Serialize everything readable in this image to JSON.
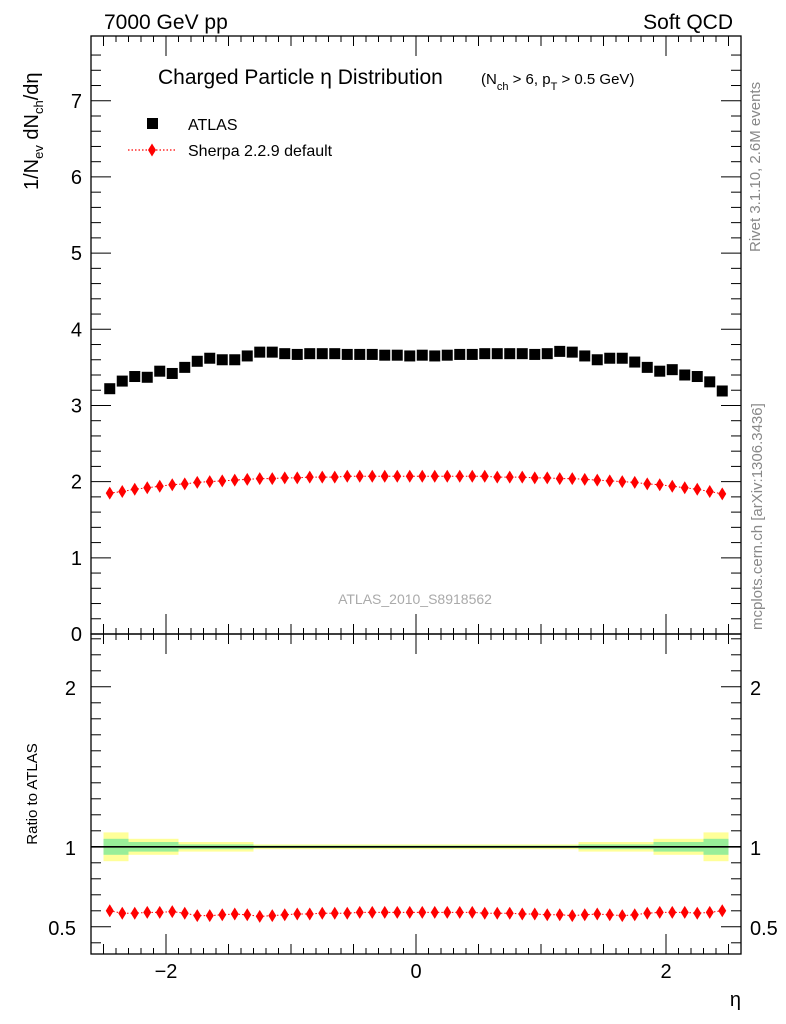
{
  "header": {
    "left": "7000 GeV pp",
    "right": "Soft QCD"
  },
  "side_labels": {
    "rivet": "Rivet 3.1.10,  2.6M events",
    "mcplots": "mcplots.cern.ch [arXiv:1306.3436]"
  },
  "colors": {
    "atlas": "#000000",
    "sherpa": "#ff0000",
    "band_inner": "#99ee99",
    "band_outer": "#ffff99"
  },
  "chart_data": [
    {
      "type": "scatter",
      "title_main": "Charged Particle η Distribution",
      "title_sub_parts": [
        "(N",
        "ch",
        " > 6, p",
        "T",
        " > 0.5 GeV)"
      ],
      "ylabel_parts": [
        "1/N",
        "ev",
        " dN",
        "ch",
        "/dη"
      ],
      "watermark": "ATLAS_2010_S8918562",
      "xlim": [
        -2.6,
        2.6
      ],
      "ylim": [
        0,
        7.85
      ],
      "yticks": [
        0,
        1,
        2,
        3,
        4,
        5,
        6,
        7
      ],
      "legend_position": "top-left",
      "legend": [
        {
          "label": "ATLAS",
          "marker": "square"
        },
        {
          "label": "Sherpa 2.2.9 default",
          "marker": "diamond-dotted-line"
        }
      ],
      "x": [
        -2.45,
        -2.35,
        -2.25,
        -2.15,
        -2.05,
        -1.95,
        -1.85,
        -1.75,
        -1.65,
        -1.55,
        -1.45,
        -1.35,
        -1.25,
        -1.15,
        -1.05,
        -0.95,
        -0.85,
        -0.75,
        -0.65,
        -0.55,
        -0.45,
        -0.35,
        -0.25,
        -0.15,
        -0.05,
        0.05,
        0.15,
        0.25,
        0.35,
        0.45,
        0.55,
        0.65,
        0.75,
        0.85,
        0.95,
        1.05,
        1.15,
        1.25,
        1.35,
        1.45,
        1.55,
        1.65,
        1.75,
        1.85,
        1.95,
        2.05,
        2.15,
        2.25,
        2.35,
        2.45
      ],
      "series": [
        {
          "name": "ATLAS",
          "values": [
            3.22,
            3.32,
            3.38,
            3.37,
            3.45,
            3.42,
            3.5,
            3.58,
            3.62,
            3.6,
            3.6,
            3.65,
            3.7,
            3.7,
            3.68,
            3.67,
            3.68,
            3.68,
            3.68,
            3.67,
            3.67,
            3.67,
            3.66,
            3.66,
            3.65,
            3.66,
            3.65,
            3.66,
            3.67,
            3.67,
            3.68,
            3.68,
            3.68,
            3.68,
            3.67,
            3.68,
            3.71,
            3.7,
            3.65,
            3.6,
            3.62,
            3.62,
            3.57,
            3.5,
            3.45,
            3.47,
            3.4,
            3.38,
            3.31,
            3.19
          ]
        },
        {
          "name": "Sherpa 2.2.9 default",
          "values": [
            1.85,
            1.87,
            1.9,
            1.92,
            1.94,
            1.96,
            1.97,
            1.99,
            2.0,
            2.01,
            2.02,
            2.03,
            2.04,
            2.04,
            2.05,
            2.05,
            2.06,
            2.06,
            2.06,
            2.07,
            2.07,
            2.07,
            2.07,
            2.07,
            2.07,
            2.07,
            2.07,
            2.07,
            2.07,
            2.07,
            2.07,
            2.06,
            2.06,
            2.06,
            2.05,
            2.05,
            2.04,
            2.04,
            2.03,
            2.02,
            2.01,
            2.0,
            1.99,
            1.97,
            1.96,
            1.94,
            1.92,
            1.9,
            1.87,
            1.84
          ]
        }
      ]
    },
    {
      "type": "scatter",
      "ylabel": "Ratio to ATLAS",
      "xlabel": "η",
      "xlim": [
        -2.6,
        2.6
      ],
      "xticks": [
        -2,
        0,
        2
      ],
      "xtick_labels": [
        "−2",
        "0",
        "2"
      ],
      "ylim": [
        0.33,
        2.33
      ],
      "yticks": [
        0.5,
        1,
        2
      ],
      "ytick_labels": [
        "0.5",
        "1",
        "2"
      ],
      "reference_line": 1,
      "uncertainty_bands": [
        {
          "x_range": [
            -2.5,
            -2.3
          ],
          "inner": 0.05,
          "outer": 0.09
        },
        {
          "x_range": [
            -2.3,
            -1.9
          ],
          "inner": 0.03,
          "outer": 0.05
        },
        {
          "x_range": [
            -1.9,
            -1.3
          ],
          "inner": 0.015,
          "outer": 0.03
        },
        {
          "x_range": [
            -1.3,
            1.3
          ],
          "inner": 0.008,
          "outer": 0.015
        },
        {
          "x_range": [
            1.3,
            1.9
          ],
          "inner": 0.015,
          "outer": 0.03
        },
        {
          "x_range": [
            1.9,
            2.3
          ],
          "inner": 0.03,
          "outer": 0.05
        },
        {
          "x_range": [
            2.3,
            2.5
          ],
          "inner": 0.05,
          "outer": 0.09
        }
      ],
      "x": [
        -2.45,
        -2.35,
        -2.25,
        -2.15,
        -2.05,
        -1.95,
        -1.85,
        -1.75,
        -1.65,
        -1.55,
        -1.45,
        -1.35,
        -1.25,
        -1.15,
        -1.05,
        -0.95,
        -0.85,
        -0.75,
        -0.65,
        -0.55,
        -0.45,
        -0.35,
        -0.25,
        -0.15,
        -0.05,
        0.05,
        0.15,
        0.25,
        0.35,
        0.45,
        0.55,
        0.65,
        0.75,
        0.85,
        0.95,
        1.05,
        1.15,
        1.25,
        1.35,
        1.45,
        1.55,
        1.65,
        1.75,
        1.85,
        1.95,
        2.05,
        2.15,
        2.25,
        2.35,
        2.45
      ],
      "series": [
        {
          "name": "Sherpa 2.2.9 default",
          "values": [
            0.6,
            0.585,
            0.585,
            0.59,
            0.59,
            0.595,
            0.585,
            0.57,
            0.57,
            0.575,
            0.58,
            0.575,
            0.565,
            0.57,
            0.575,
            0.58,
            0.58,
            0.585,
            0.585,
            0.585,
            0.59,
            0.59,
            0.59,
            0.59,
            0.59,
            0.59,
            0.59,
            0.59,
            0.59,
            0.59,
            0.585,
            0.585,
            0.585,
            0.58,
            0.58,
            0.575,
            0.575,
            0.57,
            0.575,
            0.58,
            0.575,
            0.57,
            0.575,
            0.585,
            0.59,
            0.59,
            0.59,
            0.585,
            0.59,
            0.6
          ]
        }
      ]
    }
  ]
}
